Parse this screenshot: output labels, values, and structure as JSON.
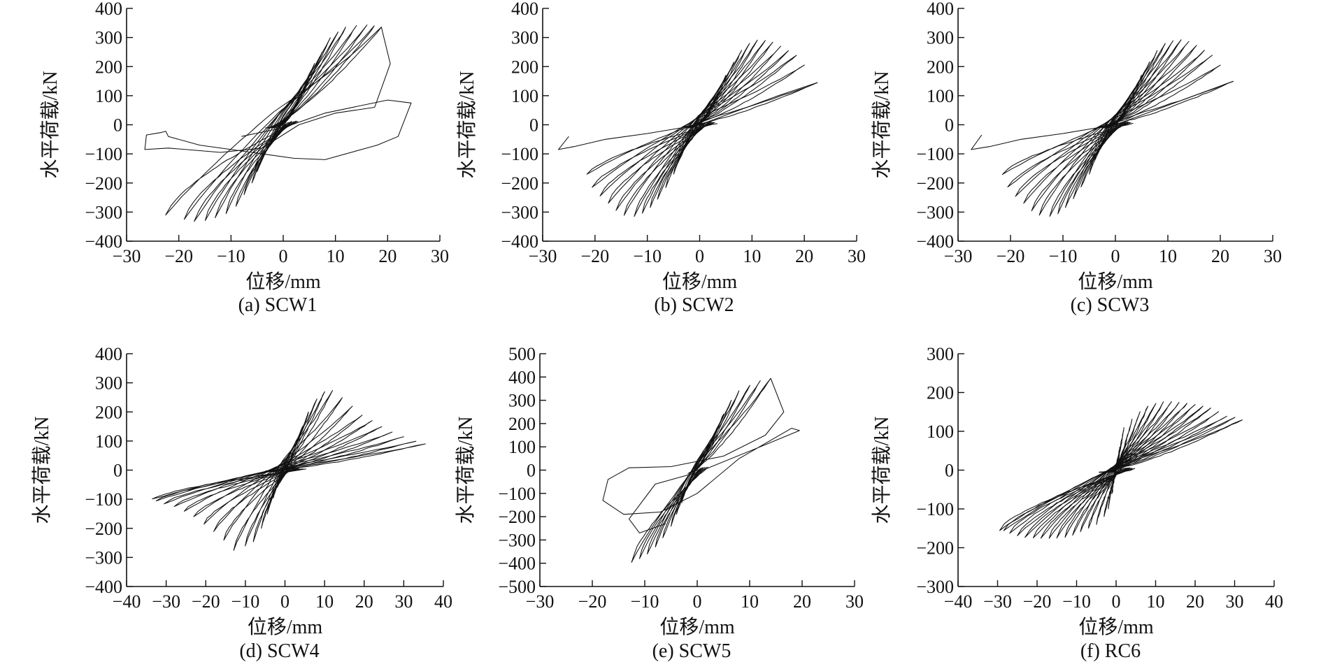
{
  "chart_data": [
    {
      "id": "a",
      "type": "line",
      "caption": "(a) SCW1",
      "xlabel": "位移/mm",
      "ylabel": "水平荷载/kN",
      "xlim": [
        -30,
        30
      ],
      "ylim": [
        -400,
        400
      ],
      "xticks": [
        -30,
        -20,
        -10,
        0,
        10,
        20,
        30
      ],
      "yticks": [
        -400,
        -300,
        -200,
        -100,
        0,
        100,
        200,
        300,
        400
      ],
      "tick_label_text": {
        "x": [
          "−30",
          "−20",
          "−10",
          "0",
          "10",
          "20",
          "30"
        ],
        "y": [
          "−400",
          "−300",
          "−200",
          "−100",
          "0",
          "100",
          "200",
          "300",
          "400"
        ]
      },
      "series": [
        {
          "name": "hysteresis",
          "cycles": [
            [
              2,
              45,
              -2,
              -45
            ],
            [
              3,
              80,
              -3,
              -80
            ],
            [
              4,
              120,
              -4,
              -120
            ],
            [
              5,
              160,
              -5,
              -160
            ],
            [
              6,
              210,
              -6,
              -200
            ],
            [
              7.5,
              250,
              -7.5,
              -240
            ],
            [
              9,
              300,
              -9,
              -280
            ],
            [
              10.5,
              320,
              -11,
              -305
            ],
            [
              12,
              335,
              -13,
              -320
            ],
            [
              14,
              340,
              -15,
              -330
            ],
            [
              16,
              342,
              -17,
              -332
            ],
            [
              17.5,
              340,
              -19,
              -325
            ],
            [
              18.8,
              335,
              -22.5,
              -310
            ]
          ]
        },
        {
          "name": "failure",
          "points": [
            [
              18.8,
              335
            ],
            [
              20.5,
              210
            ],
            [
              17.5,
              60
            ],
            [
              10,
              40
            ],
            [
              3,
              0
            ],
            [
              -4,
              -80
            ],
            [
              -12,
              -95
            ],
            [
              -22,
              -80
            ],
            [
              -26.5,
              -85
            ],
            [
              -26.2,
              -35
            ],
            [
              -23.5,
              -27
            ],
            [
              -22.5,
              -22
            ],
            [
              -22,
              -40
            ],
            [
              -16,
              -70
            ],
            [
              -6,
              -95
            ],
            [
              2,
              -115
            ],
            [
              8,
              -120
            ],
            [
              18,
              -70
            ],
            [
              22,
              -40
            ],
            [
              24.5,
              75
            ],
            [
              20,
              85
            ],
            [
              8,
              40
            ],
            [
              0,
              -10
            ],
            [
              -8,
              -40
            ]
          ]
        }
      ]
    },
    {
      "id": "b",
      "type": "line",
      "caption": "(b) SCW2",
      "xlabel": "位移/mm",
      "ylabel": "水平荷载/kN",
      "xlim": [
        -30,
        30
      ],
      "ylim": [
        -400,
        400
      ],
      "xticks": [
        -30,
        -20,
        -10,
        0,
        10,
        20,
        30
      ],
      "yticks": [
        -400,
        -300,
        -200,
        -100,
        0,
        100,
        200,
        300,
        400
      ],
      "tick_label_text": {
        "x": [
          "−30",
          "−20",
          "−10",
          "0",
          "10",
          "20",
          "30"
        ],
        "y": [
          "−400",
          "−300",
          "−200",
          "−100",
          "0",
          "100",
          "200",
          "300",
          "400"
        ]
      },
      "series": [
        {
          "name": "hysteresis",
          "cycles": [
            [
              2,
              40,
              -2,
              -40
            ],
            [
              3,
              80,
              -3,
              -80
            ],
            [
              4,
              120,
              -4,
              -120
            ],
            [
              5,
              170,
              -5,
              -170
            ],
            [
              6.5,
              215,
              -6.5,
              -215
            ],
            [
              8,
              255,
              -8,
              -255
            ],
            [
              9.5,
              280,
              -9.5,
              -285
            ],
            [
              11,
              290,
              -11,
              -305
            ],
            [
              12.5,
              290,
              -12.5,
              -315
            ],
            [
              14,
              285,
              -14.5,
              -310
            ],
            [
              15.5,
              270,
              -16,
              -295
            ],
            [
              17,
              255,
              -17.5,
              -270
            ],
            [
              18.5,
              240,
              -19,
              -245
            ],
            [
              20,
              205,
              -20.5,
              -215
            ],
            [
              22.5,
              145,
              -21.5,
              -170
            ]
          ]
        },
        {
          "name": "failure",
          "points": [
            [
              22.5,
              145
            ],
            [
              15,
              100
            ],
            [
              0,
              0
            ],
            [
              -10,
              -30
            ],
            [
              -18,
              -50
            ],
            [
              -24,
              -75
            ],
            [
              -27,
              -85
            ],
            [
              -25,
              -40
            ]
          ]
        }
      ]
    },
    {
      "id": "c",
      "type": "line",
      "caption": "(c) SCW3",
      "xlabel": "位移/mm",
      "ylabel": "水平荷载/kN",
      "xlim": [
        -30,
        30
      ],
      "ylim": [
        -400,
        400
      ],
      "xticks": [
        -30,
        -20,
        -10,
        0,
        10,
        20,
        30
      ],
      "yticks": [
        -400,
        -300,
        -200,
        -100,
        0,
        100,
        200,
        300,
        400
      ],
      "tick_label_text": {
        "x": [
          "−30",
          "−20",
          "−10",
          "0",
          "10",
          "20",
          "30"
        ],
        "y": [
          "−400",
          "−300",
          "−200",
          "−100",
          "0",
          "100",
          "200",
          "300",
          "400"
        ]
      },
      "series": [
        {
          "name": "hysteresis",
          "cycles": [
            [
              2,
              40,
              -2,
              -40
            ],
            [
              3,
              80,
              -3,
              -80
            ],
            [
              4,
              120,
              -4,
              -120
            ],
            [
              5,
              170,
              -5,
              -170
            ],
            [
              6.5,
              215,
              -6.5,
              -215
            ],
            [
              8,
              255,
              -8,
              -255
            ],
            [
              9.5,
              280,
              -9.5,
              -285
            ],
            [
              11,
              290,
              -11,
              -305
            ],
            [
              12.5,
              292,
              -12.5,
              -315
            ],
            [
              14,
              287,
              -14.5,
              -310
            ],
            [
              15.5,
              272,
              -16,
              -295
            ],
            [
              17,
              255,
              -17.5,
              -270
            ],
            [
              18.5,
              240,
              -19,
              -245
            ],
            [
              20,
              205,
              -20.5,
              -215
            ],
            [
              22.5,
              150,
              -21.5,
              -170
            ]
          ]
        },
        {
          "name": "failure",
          "points": [
            [
              22.5,
              150
            ],
            [
              15,
              100
            ],
            [
              0,
              0
            ],
            [
              -10,
              -30
            ],
            [
              -18,
              -50
            ],
            [
              -24,
              -75
            ],
            [
              -27.5,
              -85
            ],
            [
              -25.5,
              -35
            ]
          ]
        }
      ]
    },
    {
      "id": "d",
      "type": "line",
      "caption": "(d) SCW4",
      "xlabel": "位移/mm",
      "ylabel": "水平荷载/kN",
      "xlim": [
        -40,
        40
      ],
      "ylim": [
        -400,
        400
      ],
      "xticks": [
        -40,
        -30,
        -20,
        -10,
        0,
        10,
        20,
        30,
        40
      ],
      "yticks": [
        -400,
        -300,
        -200,
        -100,
        0,
        100,
        200,
        300,
        400
      ],
      "tick_label_text": {
        "x": [
          "−40",
          "−30",
          "−20",
          "−10",
          "0",
          "10",
          "20",
          "30",
          "40"
        ],
        "y": [
          "−400",
          "−300",
          "−200",
          "−100",
          "0",
          "100",
          "200",
          "300",
          "400"
        ]
      },
      "series": [
        {
          "name": "hysteresis",
          "cycles": [
            [
              2,
              50,
              -2,
              -50
            ],
            [
              3,
              95,
              -3,
              -95
            ],
            [
              4.5,
              150,
              -4.5,
              -150
            ],
            [
              6,
              200,
              -6,
              -200
            ],
            [
              8,
              245,
              -8,
              -245
            ],
            [
              10,
              270,
              -10,
              -260
            ],
            [
              12,
              275,
              -13,
              -275
            ],
            [
              14.5,
              250,
              -15.5,
              -240
            ],
            [
              17,
              220,
              -18,
              -210
            ],
            [
              19.5,
              190,
              -20.5,
              -185
            ],
            [
              22,
              170,
              -23,
              -160
            ],
            [
              24.5,
              150,
              -25.5,
              -140
            ],
            [
              27,
              130,
              -28,
              -125
            ],
            [
              30,
              115,
              -30.5,
              -115
            ],
            [
              33,
              100,
              -32.5,
              -105
            ],
            [
              35.5,
              90,
              -33.5,
              -100
            ]
          ]
        }
      ]
    },
    {
      "id": "e",
      "type": "line",
      "caption": "(e) SCW5",
      "xlabel": "位移/mm",
      "ylabel": "水平荷载/kN",
      "xlim": [
        -30,
        30
      ],
      "ylim": [
        -500,
        500
      ],
      "xticks": [
        -30,
        -20,
        -10,
        0,
        10,
        20,
        30
      ],
      "yticks": [
        -500,
        -400,
        -300,
        -200,
        -100,
        0,
        100,
        200,
        300,
        400,
        500
      ],
      "tick_label_text": {
        "x": [
          "−30",
          "−20",
          "−10",
          "0",
          "10",
          "20",
          "30"
        ],
        "y": [
          "−500",
          "−400",
          "−300",
          "−200",
          "−100",
          "0",
          "100",
          "200",
          "300",
          "400",
          "500"
        ]
      },
      "series": [
        {
          "name": "hysteresis",
          "cycles": [
            [
              2,
              80,
              -2,
              -80
            ],
            [
              3,
              140,
              -3,
              -140
            ],
            [
              4,
              190,
              -4,
              -190
            ],
            [
              5,
              240,
              -5,
              -240
            ],
            [
              6.5,
              300,
              -6.5,
              -290
            ],
            [
              8,
              340,
              -8,
              -330
            ],
            [
              10,
              365,
              -9.5,
              -360
            ],
            [
              12,
              385,
              -11,
              -380
            ],
            [
              14,
              395,
              -12.5,
              -395
            ]
          ]
        },
        {
          "name": "failure",
          "points": [
            [
              14,
              395
            ],
            [
              16.5,
              250
            ],
            [
              13,
              150
            ],
            [
              5,
              60
            ],
            [
              -5,
              15
            ],
            [
              -13,
              10
            ],
            [
              -17,
              -40
            ],
            [
              -18,
              -130
            ],
            [
              -14,
              -190
            ],
            [
              -7,
              -180
            ],
            [
              0,
              -100
            ],
            [
              8,
              50
            ],
            [
              18,
              180
            ],
            [
              19.5,
              170
            ],
            [
              12,
              100
            ],
            [
              0,
              -10
            ],
            [
              -8,
              -60
            ],
            [
              -13,
              -210
            ],
            [
              -11,
              -270
            ],
            [
              -6,
              -230
            ]
          ]
        }
      ]
    },
    {
      "id": "f",
      "type": "line",
      "caption": "(f) RC6",
      "xlabel": "位移/mm",
      "ylabel": "水平荷载/kN",
      "xlim": [
        -40,
        40
      ],
      "ylim": [
        -300,
        300
      ],
      "xticks": [
        -40,
        -30,
        -20,
        -10,
        0,
        10,
        20,
        30,
        40
      ],
      "yticks": [
        -300,
        -200,
        -100,
        0,
        100,
        200,
        300
      ],
      "tick_label_text": {
        "x": [
          "−40",
          "−30",
          "−20",
          "−10",
          "0",
          "10",
          "20",
          "30",
          "40"
        ],
        "y": [
          "−300",
          "−200",
          "−100",
          "0",
          "100",
          "200",
          "300"
        ]
      },
      "series": [
        {
          "name": "hysteresis",
          "cycles": [
            [
              1,
              60,
              -1,
              -60
            ],
            [
              2,
              110,
              -2,
              -100
            ],
            [
              4,
              130,
              -3,
              -120
            ],
            [
              6,
              150,
              -5,
              -140
            ],
            [
              8,
              165,
              -7,
              -150
            ],
            [
              10,
              172,
              -9,
              -160
            ],
            [
              12,
              175,
              -11,
              -168
            ],
            [
              14,
              176,
              -13,
              -172
            ],
            [
              16,
              175,
              -15,
              -175
            ],
            [
              18,
              173,
              -17,
              -176
            ],
            [
              20,
              170,
              -19,
              -176
            ],
            [
              22,
              165,
              -21,
              -175
            ],
            [
              24,
              160,
              -23,
              -173
            ],
            [
              26,
              150,
              -25,
              -168
            ],
            [
              28,
              140,
              -27,
              -162
            ],
            [
              30,
              135,
              -28.5,
              -157
            ],
            [
              32,
              130,
              -29.5,
              -155
            ]
          ]
        }
      ]
    }
  ]
}
